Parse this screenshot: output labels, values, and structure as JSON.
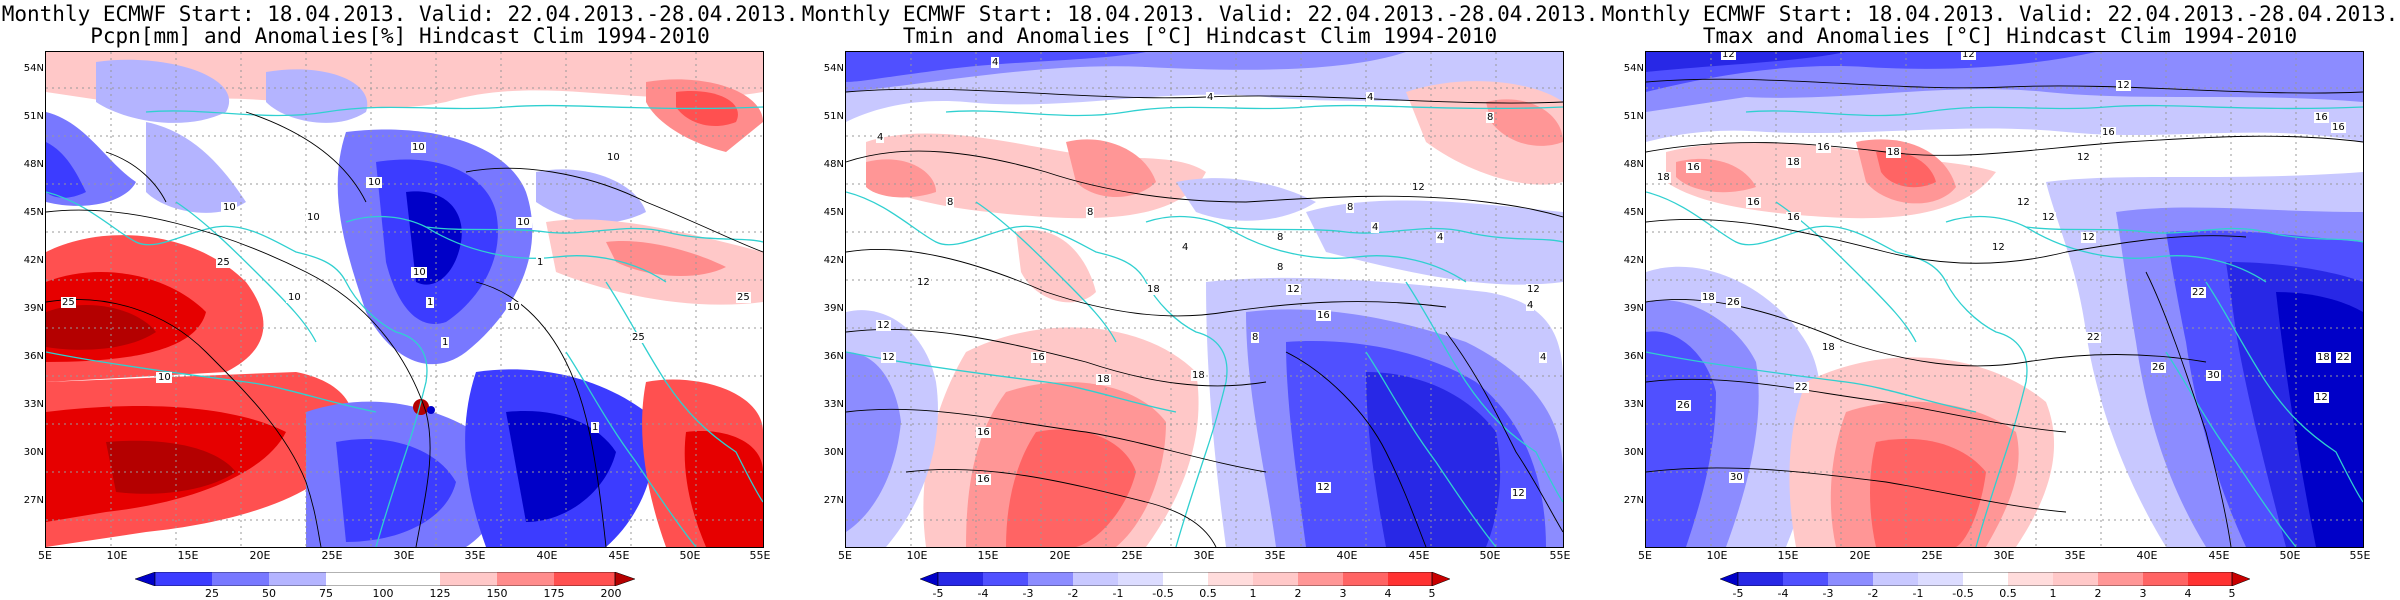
{
  "panels": [
    {
      "id": "pcpn",
      "title_line1": "Monthly ECMWF Start: 18.04.2013. Valid: 22.04.2013.-28.04.2013.",
      "title_line2": "Pcpn[mm] and Anomalies[%] Hindcast Clim 1994-2010",
      "lat_labels": [
        "54N",
        "51N",
        "48N",
        "45N",
        "42N",
        "39N",
        "36N",
        "33N",
        "30N",
        "27N"
      ],
      "lon_labels": [
        "5E",
        "10E",
        "15E",
        "20E",
        "25E",
        "30E",
        "35E",
        "40E",
        "45E",
        "50E",
        "55E"
      ],
      "colorbar": {
        "colors": [
          "#0000c8",
          "#3c3cff",
          "#7878ff",
          "#b4b4ff",
          "#ffffff",
          "#ffc8c8",
          "#ff8c8c",
          "#ff5050",
          "#e60000",
          "#b40000"
        ],
        "ticks": [
          "25",
          "50",
          "75",
          "100",
          "125",
          "150",
          "175",
          "200"
        ]
      },
      "contour_labels": [
        "10",
        "10",
        "10",
        "10",
        "10",
        "10",
        "25",
        "25",
        "25",
        "25",
        "1",
        "1",
        "10",
        "1",
        "1",
        "10",
        "10",
        "10"
      ]
    },
    {
      "id": "tmin",
      "title_line1": "Monthly ECMWF Start: 18.04.2013. Valid: 22.04.2013.-28.04.2013.",
      "title_line2": "Tmin and Anomalies [°C] Hindcast Clim 1994-2010",
      "lat_labels": [
        "54N",
        "51N",
        "48N",
        "45N",
        "42N",
        "39N",
        "36N",
        "33N",
        "30N",
        "27N"
      ],
      "lon_labels": [
        "5E",
        "10E",
        "15E",
        "20E",
        "25E",
        "30E",
        "35E",
        "40E",
        "45E",
        "50E",
        "55E"
      ],
      "colorbar": {
        "colors": [
          "#0000c8",
          "#2828e6",
          "#5050ff",
          "#8c8cff",
          "#c8c8ff",
          "#ffffff",
          "#ffffff",
          "#ffc8c8",
          "#ff9696",
          "#ff6464",
          "#ff3232",
          "#c80000"
        ],
        "ticks": [
          "-5",
          "-4",
          "-3",
          "-2",
          "-1",
          "-0.5",
          "0.5",
          "1",
          "2",
          "3",
          "4",
          "5"
        ]
      },
      "contour_labels": [
        "4",
        "4",
        "4",
        "4",
        "8",
        "8",
        "8",
        "8",
        "4",
        "4",
        "4",
        "8",
        "12",
        "12",
        "12",
        "12",
        "16",
        "16",
        "16",
        "18",
        "18",
        "18",
        "12",
        "12",
        "4",
        "4",
        "8",
        "8",
        "16",
        "12",
        "12"
      ]
    },
    {
      "id": "tmax",
      "title_line1": "Monthly ECMWF Start: 18.04.2013. Valid: 22.04.2013.-28.04.2013.",
      "title_line2": "Tmax and Anomalies [°C] Hindcast Clim 1994-2010",
      "lat_labels": [
        "54N",
        "51N",
        "48N",
        "45N",
        "42N",
        "39N",
        "36N",
        "33N",
        "30N",
        "27N"
      ],
      "lon_labels": [
        "5E",
        "10E",
        "15E",
        "20E",
        "25E",
        "30E",
        "35E",
        "40E",
        "45E",
        "50E",
        "55E"
      ],
      "colorbar": {
        "colors": [
          "#0000c8",
          "#2828e6",
          "#5050ff",
          "#8c8cff",
          "#c8c8ff",
          "#ffffff",
          "#ffffff",
          "#ffc8c8",
          "#ff9696",
          "#ff6464",
          "#ff3232",
          "#c80000"
        ],
        "ticks": [
          "-5",
          "-4",
          "-3",
          "-2",
          "-1",
          "-0.5",
          "0.5",
          "1",
          "2",
          "3",
          "4",
          "5"
        ]
      },
      "contour_labels": [
        "12",
        "12",
        "12",
        "16",
        "16",
        "16",
        "16",
        "16",
        "16",
        "16",
        "18",
        "18",
        "12",
        "12",
        "12",
        "12",
        "12",
        "22",
        "22",
        "18",
        "18",
        "26",
        "26",
        "30",
        "30",
        "26",
        "22",
        "18",
        "22",
        "12",
        "18"
      ]
    }
  ]
}
